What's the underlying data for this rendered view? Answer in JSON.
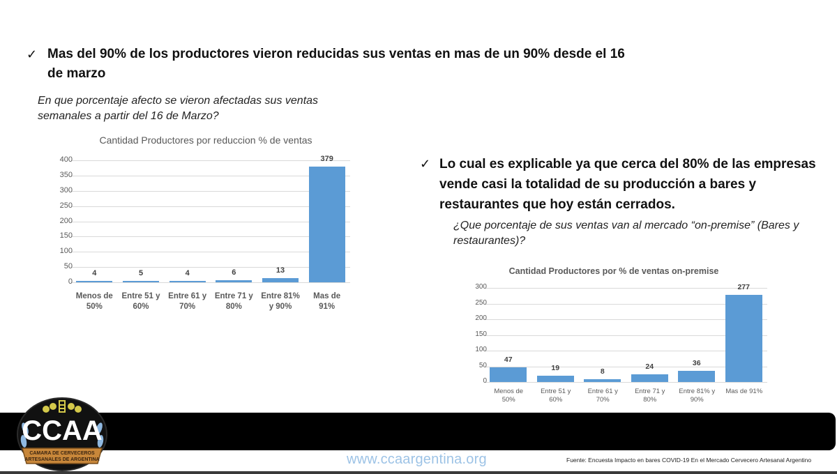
{
  "bullets": [
    {
      "check": "✓",
      "text": "Mas del 90% de los productores  vieron reducidas sus ventas en mas de un 90% desde el 16 de marzo"
    },
    {
      "check": "✓",
      "text": "Lo cual es explicable ya que cerca del 80% de las empresas vende casi la totalidad de su producción a bares y restaurantes que hoy están cerrados."
    }
  ],
  "questions": [
    "En que porcentaje afecto se vieron afectadas sus ventas semanales a partir del 16 de Marzo?",
    "¿Que porcentaje de sus ventas van al mercado “on-premise” (Bares y restaurantes)?"
  ],
  "chart_data": [
    {
      "type": "bar",
      "title": "Cantidad Productores por reduccion % de ventas",
      "categories": [
        "Menos de 50%",
        "Entre 51 y 60%",
        "Entre 61 y 70%",
        "Entre 71 y 80%",
        "Entre 81% y 90%",
        "Mas de 91%"
      ],
      "category_lines": [
        [
          "Menos de",
          "50%"
        ],
        [
          "Entre 51 y",
          "60%"
        ],
        [
          "Entre 61 y",
          "70%"
        ],
        [
          "Entre 71 y",
          "80%"
        ],
        [
          "Entre 81%",
          "y 90%"
        ],
        [
          "Mas de",
          "91%"
        ]
      ],
      "values": [
        4,
        5,
        4,
        6,
        13,
        379
      ],
      "yticks": [
        0,
        50,
        100,
        150,
        200,
        250,
        300,
        350,
        400
      ],
      "ylim": [
        0,
        400
      ],
      "xlabel": "",
      "ylabel": "",
      "grid": true,
      "legend": false,
      "bar_color": "#5b9bd5"
    },
    {
      "type": "bar",
      "title": "Cantidad Productores por % de ventas on-premise",
      "categories": [
        "Menos de 50%",
        "Entre 51 y 60%",
        "Entre 61 y 70%",
        "Entre 71 y 80%",
        "Entre 81% y 90%",
        "Mas de 91%"
      ],
      "category_lines": [
        [
          "Menos de",
          "50%"
        ],
        [
          "Entre 51 y",
          "60%"
        ],
        [
          "Entre 61 y",
          "70%"
        ],
        [
          "Entre 71 y",
          "80%"
        ],
        [
          "Entre 81% y",
          "90%"
        ],
        [
          "Mas de 91%",
          ""
        ]
      ],
      "values": [
        47,
        19,
        8,
        24,
        36,
        277
      ],
      "yticks": [
        0,
        50,
        100,
        150,
        200,
        250,
        300
      ],
      "ylim": [
        0,
        300
      ],
      "xlabel": "",
      "ylabel": "",
      "grid": true,
      "legend": false,
      "bar_color": "#5b9bd5"
    }
  ],
  "footer": {
    "logo_text": "CCAA",
    "logo_subtext_1": "CAMARA DE CERVECEROS",
    "logo_subtext_2": "ARTESANALES DE ARGENTINA",
    "website": "www.ccaargentina.org",
    "source": "Fuente: Encuesta Impacto en bares COVID-19 En el Mercado Cervecero Artesanal Argentino"
  }
}
